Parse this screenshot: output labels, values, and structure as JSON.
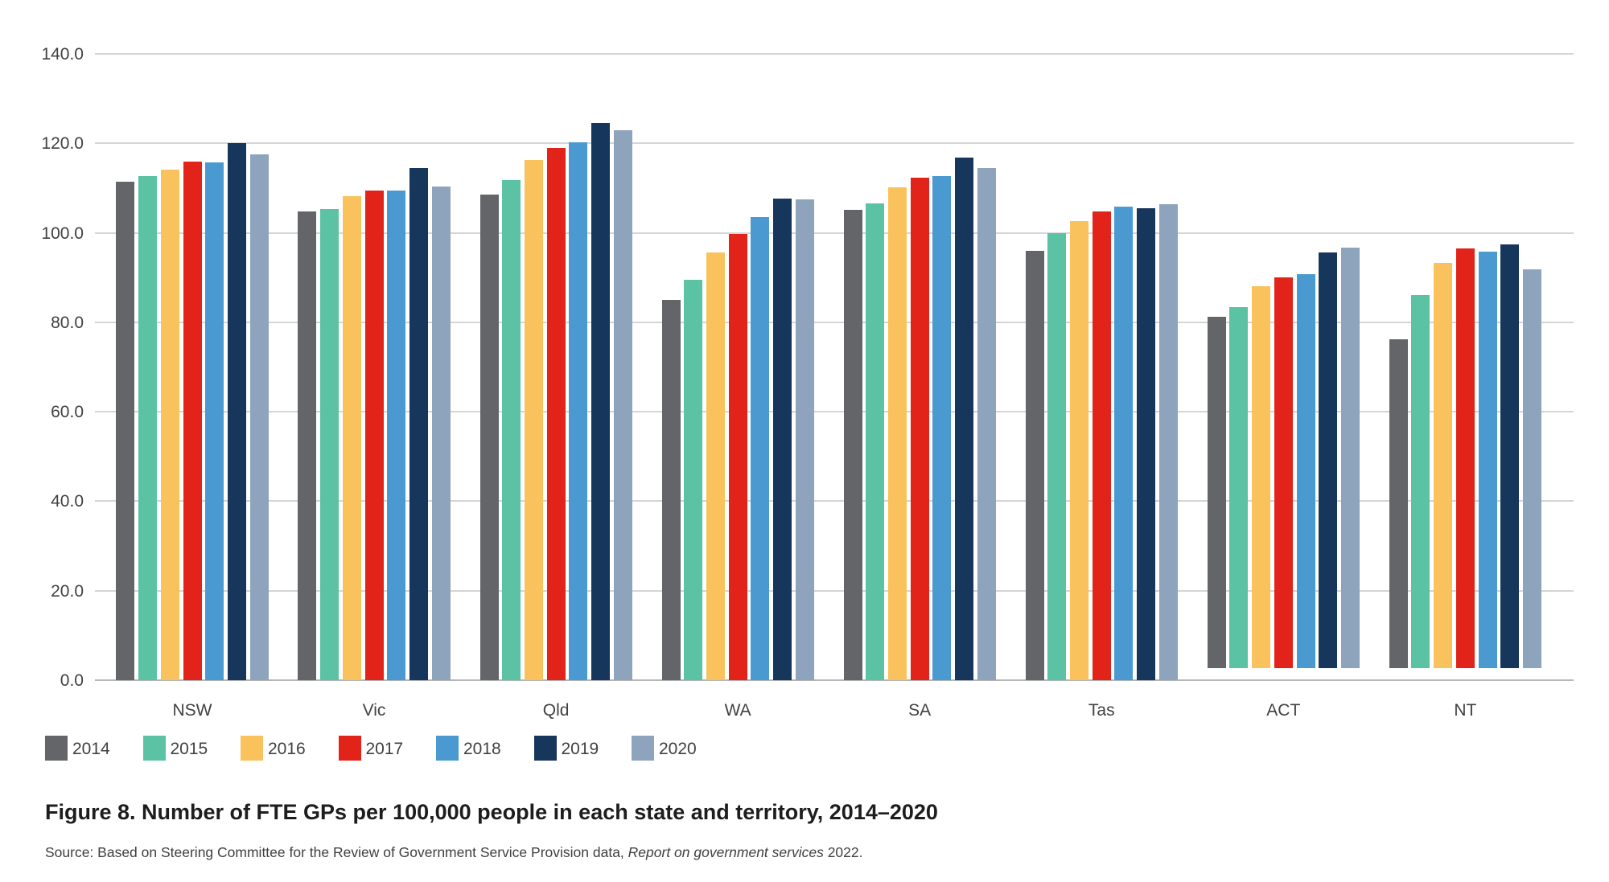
{
  "figure": {
    "title": "Figure 8. Number of FTE GPs per 100,000 people in each state and territory, 2014–2020",
    "source_prefix": "Source: Based on Steering Committee for the Review of Government Service Provision data, ",
    "source_italic": "Report on government services",
    "source_suffix": " 2022."
  },
  "chart_data": {
    "type": "bar",
    "title": "Number of FTE GPs per 100,000 people in each state and territory, 2014–2020",
    "categories": [
      "NSW",
      "Vic",
      "Qld",
      "WA",
      "SA",
      "Tas",
      "ACT",
      "NT"
    ],
    "series": [
      {
        "name": "2014",
        "color": "#636569",
        "values": [
          111.4,
          104.8,
          108.6,
          85.0,
          105.1,
          95.9,
          81.3,
          76.2
        ]
      },
      {
        "name": "2015",
        "color": "#5BC2A4",
        "values": [
          112.6,
          105.4,
          111.7,
          89.5,
          106.5,
          100.0,
          83.4,
          86.1
        ]
      },
      {
        "name": "2016",
        "color": "#F9C25C",
        "values": [
          114.2,
          108.2,
          116.2,
          95.6,
          110.2,
          102.6,
          88.0,
          93.3
        ]
      },
      {
        "name": "2017",
        "color": "#E2231A",
        "values": [
          115.9,
          109.4,
          118.9,
          99.7,
          112.4,
          104.8,
          90.0,
          96.5
        ]
      },
      {
        "name": "2018",
        "color": "#4A9AD1",
        "values": [
          115.7,
          109.4,
          120.3,
          103.5,
          112.6,
          105.9,
          90.8,
          95.8
        ]
      },
      {
        "name": "2019",
        "color": "#17365C",
        "values": [
          120.0,
          114.4,
          124.5,
          107.7,
          116.9,
          105.5,
          95.6,
          97.4
        ]
      },
      {
        "name": "2020",
        "color": "#8EA3BC",
        "values": [
          117.6,
          110.4,
          122.9,
          107.5,
          114.4,
          106.4,
          96.7,
          91.8
        ]
      }
    ],
    "ylim": [
      0,
      140
    ],
    "ytick_step": 20,
    "ytick_labels": [
      "0.0",
      "20.0",
      "40.0",
      "60.0",
      "80.0",
      "100.0",
      "120.0",
      "140.0"
    ],
    "xlabel": "",
    "ylabel": "",
    "grid": true,
    "legend_position": "bottom",
    "floating_baseline_categories": [
      "ACT",
      "NT"
    ]
  }
}
